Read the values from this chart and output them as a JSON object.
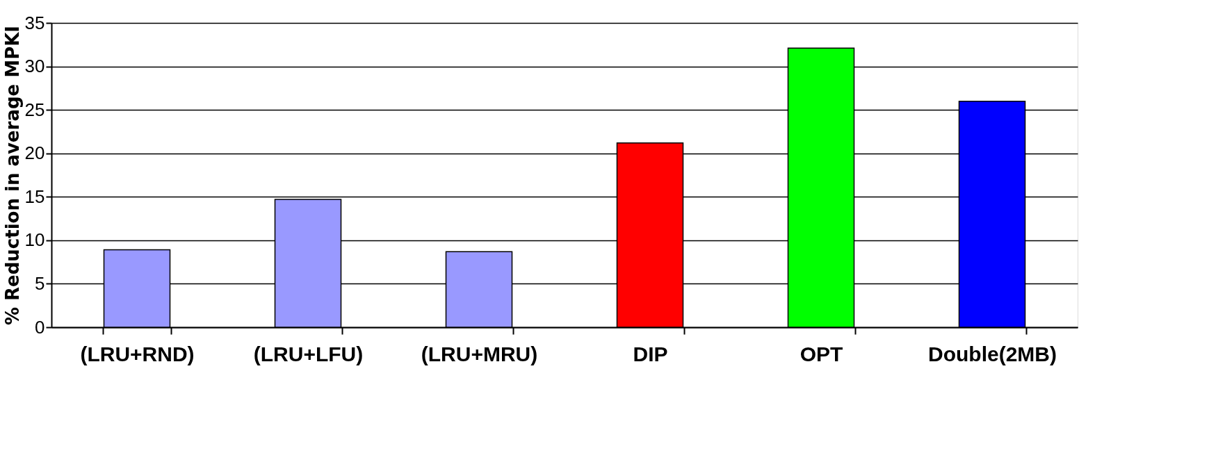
{
  "chart_data": {
    "type": "bar",
    "ylabel": "% Reduction in average MPKI",
    "categories": [
      "(LRU+RND)",
      "(LRU+LFU)",
      "(LRU+MRU)",
      "DIP",
      "OPT",
      "Double(2MB)"
    ],
    "values": [
      8.9,
      14.7,
      8.7,
      21.2,
      32.1,
      26.0
    ],
    "colors": [
      "#9999ff",
      "#9999ff",
      "#9999ff",
      "#ff0000",
      "#00ff00",
      "#0000ff"
    ],
    "ylim": [
      0,
      35
    ],
    "yticks": [
      0,
      5,
      10,
      15,
      20,
      25,
      30,
      35
    ],
    "grid": "y",
    "legend": false
  }
}
